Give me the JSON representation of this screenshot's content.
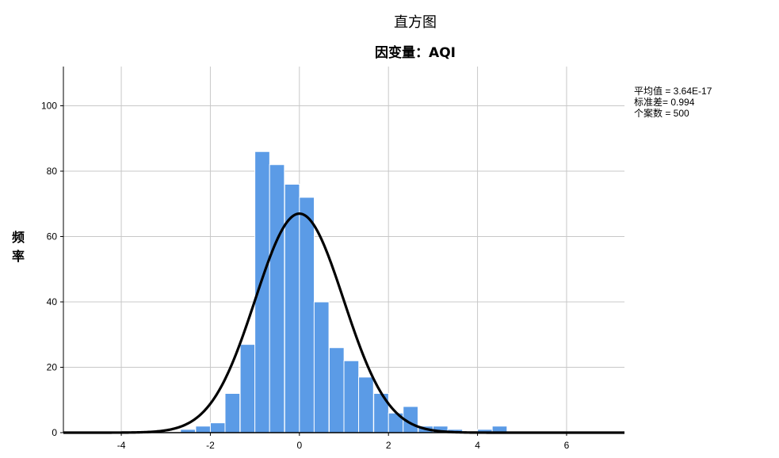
{
  "chart_data": {
    "type": "bar",
    "title": "直方图",
    "subtitle": "因变量：AQI",
    "xlabel": "",
    "ylabel": "频率",
    "xlim": [
      -5.3,
      7.3
    ],
    "ylim": [
      0,
      112
    ],
    "x_ticks": [
      "-4",
      "-2",
      "0",
      "2",
      "4",
      "6"
    ],
    "x_tick_values": [
      -4,
      -2,
      0,
      2,
      4,
      6
    ],
    "y_ticks": [
      "0",
      "20",
      "40",
      "60",
      "80",
      "100"
    ],
    "y_tick_values": [
      0,
      20,
      40,
      60,
      80,
      100
    ],
    "grid": true,
    "bar_color": "#5b9be6",
    "bin_width": 0.333,
    "bins": [
      {
        "x0": -2.67,
        "count": 1
      },
      {
        "x0": -2.33,
        "count": 2
      },
      {
        "x0": -2.0,
        "count": 3
      },
      {
        "x0": -1.67,
        "count": 12
      },
      {
        "x0": -1.33,
        "count": 27
      },
      {
        "x0": -1.0,
        "count": 86
      },
      {
        "x0": -0.67,
        "count": 82
      },
      {
        "x0": -0.33,
        "count": 76
      },
      {
        "x0": 0.0,
        "count": 72
      },
      {
        "x0": 0.33,
        "count": 40
      },
      {
        "x0": 0.67,
        "count": 26
      },
      {
        "x0": 1.0,
        "count": 22
      },
      {
        "x0": 1.33,
        "count": 17
      },
      {
        "x0": 1.67,
        "count": 12
      },
      {
        "x0": 2.0,
        "count": 6
      },
      {
        "x0": 2.33,
        "count": 8
      },
      {
        "x0": 2.67,
        "count": 2
      },
      {
        "x0": 3.0,
        "count": 2
      },
      {
        "x0": 3.33,
        "count": 1
      },
      {
        "x0": 3.67,
        "count": 0
      },
      {
        "x0": 4.0,
        "count": 1
      },
      {
        "x0": 4.33,
        "count": 2
      }
    ],
    "normal_curve": {
      "mean": 0.0,
      "sd": 0.994,
      "n": 500,
      "peak": 67
    },
    "stats": {
      "mean_label": "平均值 = 3.64E-17",
      "sd_label": "标准差= 0.994",
      "n_label": "个案数 = 500"
    }
  }
}
